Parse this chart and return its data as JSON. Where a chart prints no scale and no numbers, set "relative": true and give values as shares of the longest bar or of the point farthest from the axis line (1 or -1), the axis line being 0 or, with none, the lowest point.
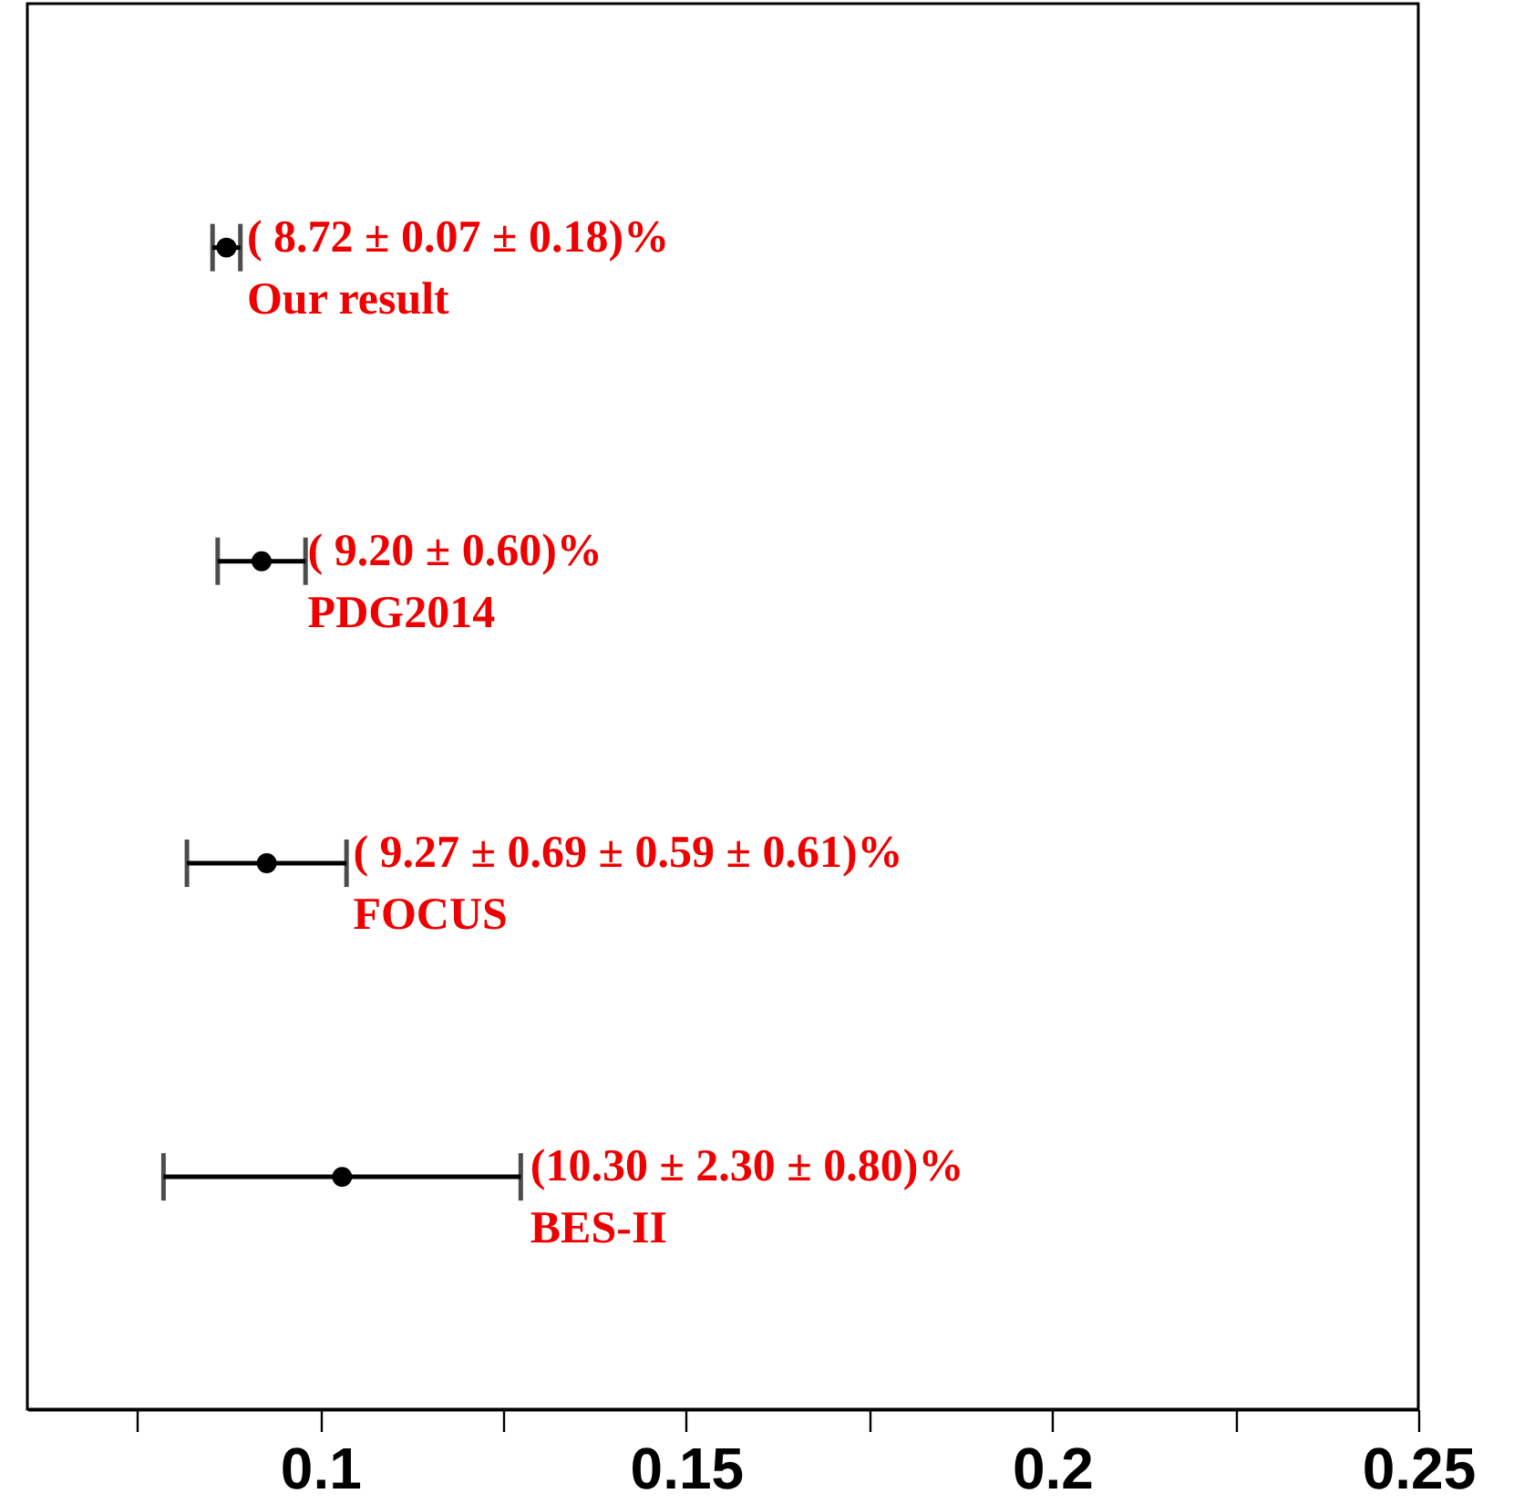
{
  "chart_data": {
    "type": "scatter",
    "relative": true,
    "x": [
      0.0872,
      0.092,
      0.0927,
      0.103
    ],
    "values": [
      1,
      0.73,
      0.47,
      0.2
    ],
    "xerrors": [
      0.0019,
      0.006,
      0.0109,
      0.0244
    ],
    "color": "#000000",
    "marker": "circle",
    "xlim": [
      0.06,
      0.25
    ],
    "xticks": [
      {
        "value": 0.075,
        "label": null
      },
      0.1,
      {
        "value": 0.125,
        "label": null
      },
      0.15,
      {
        "value": 0.175,
        "label": null
      },
      0.2,
      {
        "value": 0.225,
        "label": null
      },
      0.25
    ],
    "grid": false,
    "annotations": [
      {
        "text": "( 8.72 ±  0.07 ±  0.18)%\nOur result",
        "x": 0.09,
        "y": 1
      },
      {
        "text": "( 9.20 ±  0.60)%\nPDG2014",
        "x": 0.0983,
        "y": 0.73
      },
      {
        "text": "( 9.27 ±  0.69 ±  0.59 ±  0.61)%\nFOCUS",
        "x": 0.1045,
        "y": 0.47
      },
      {
        "text": "(10.30 ±  2.30 ±  0.80)%\nBES-II",
        "x": 0.1287,
        "y": 0.2
      }
    ]
  }
}
